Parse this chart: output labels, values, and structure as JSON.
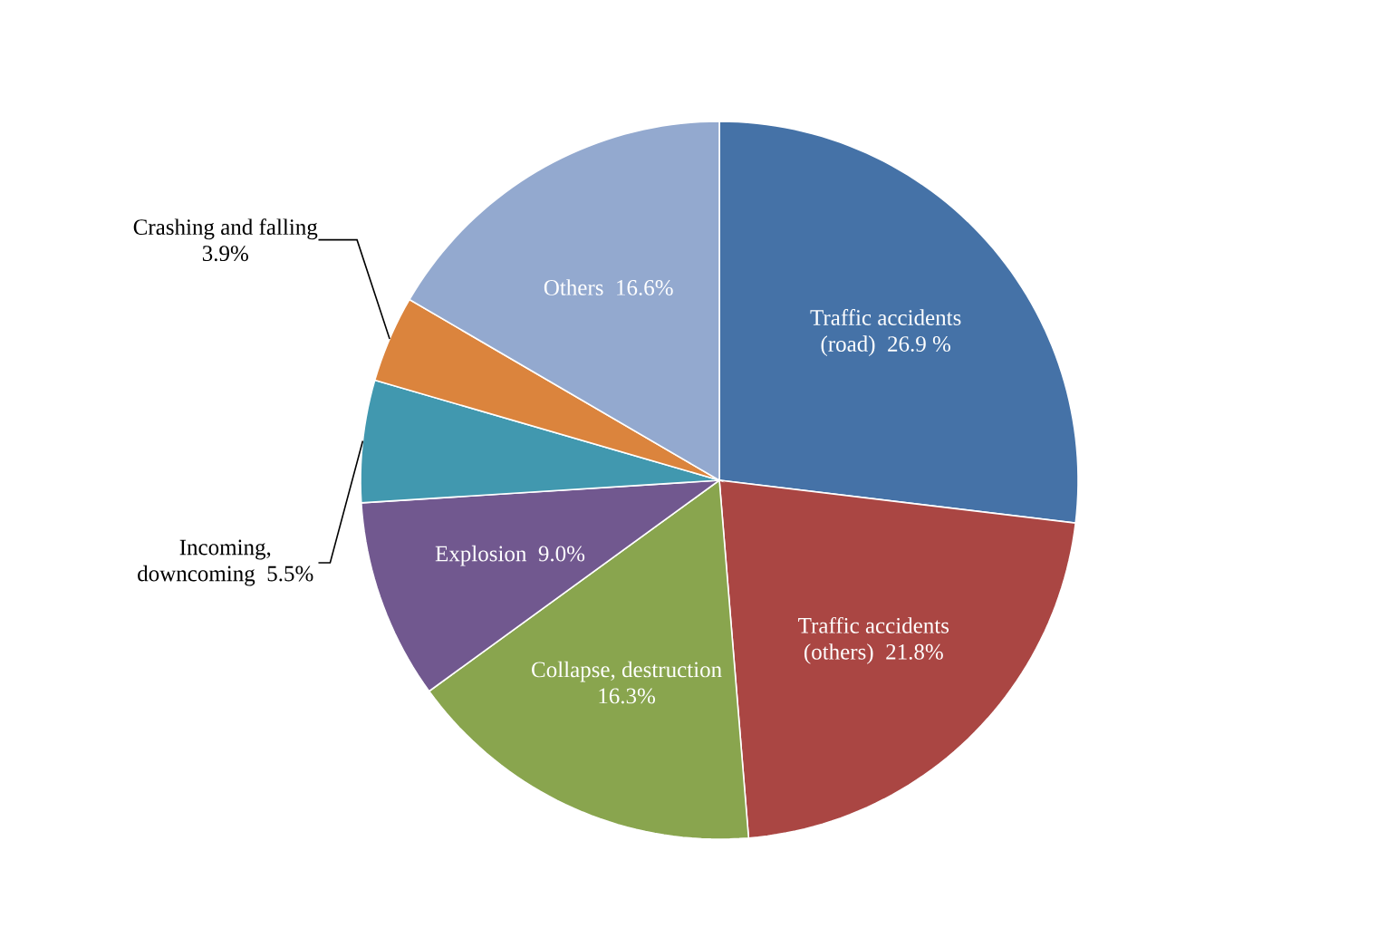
{
  "chart_data": {
    "type": "pie",
    "categories": [
      "Traffic accidents (road)",
      "Traffic accidents (others)",
      "Collapse, destruction",
      "Explosion",
      "Incoming, downcoming",
      "Crashing and falling",
      "Others"
    ],
    "values": [
      26.9,
      21.8,
      16.3,
      9.0,
      5.5,
      3.9,
      16.6
    ],
    "value_labels": [
      "26.9 %",
      "21.8%",
      "16.3%",
      "9.0%",
      "5.5%",
      "3.9%",
      "16.6%"
    ],
    "colors": [
      "#4572a7",
      "#aa4643",
      "#89a54e",
      "#71588f",
      "#4198af",
      "#db843d",
      "#93a9cf"
    ]
  }
}
